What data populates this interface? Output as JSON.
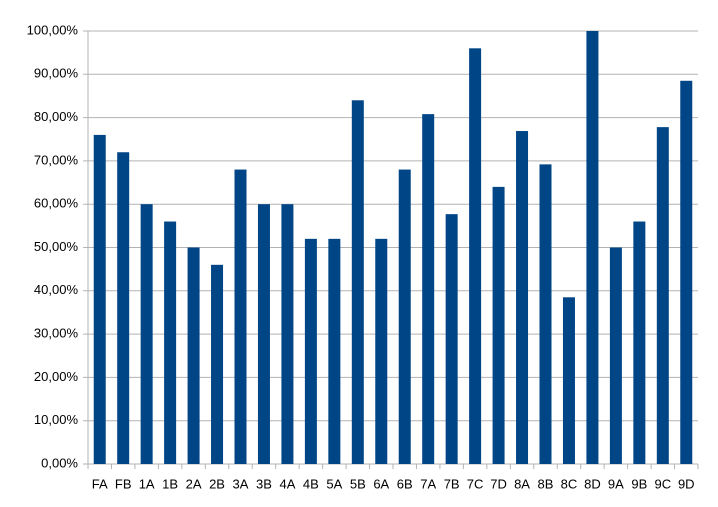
{
  "chart_data": {
    "type": "bar",
    "categories": [
      "FA",
      "FB",
      "1A",
      "1B",
      "2A",
      "2B",
      "3A",
      "3B",
      "4A",
      "4B",
      "5A",
      "5B",
      "6A",
      "6B",
      "7A",
      "7B",
      "7C",
      "7D",
      "8A",
      "8B",
      "8C",
      "8D",
      "9A",
      "9B",
      "9C",
      "9D"
    ],
    "values": [
      76,
      72,
      60,
      56,
      50,
      46,
      68,
      60,
      60,
      52,
      52,
      84,
      52,
      68,
      80.8,
      57.7,
      96,
      64,
      76.9,
      69.2,
      38.5,
      100,
      50,
      56,
      77.8,
      88.5
    ],
    "color": "#004586",
    "ylim": [
      0,
      100
    ],
    "yticks": [
      {
        "value": 0,
        "label": "0,00%"
      },
      {
        "value": 10,
        "label": "10,00%"
      },
      {
        "value": 20,
        "label": "20,00%"
      },
      {
        "value": 30,
        "label": "30,00%"
      },
      {
        "value": 40,
        "label": "40,00%"
      },
      {
        "value": 50,
        "label": "50,00%"
      },
      {
        "value": 60,
        "label": "60,00%"
      },
      {
        "value": 70,
        "label": "70,00%"
      },
      {
        "value": 80,
        "label": "80,00%"
      },
      {
        "value": 90,
        "label": "90,00%"
      },
      {
        "value": 100,
        "label": "100,00%"
      }
    ],
    "grid": true
  }
}
